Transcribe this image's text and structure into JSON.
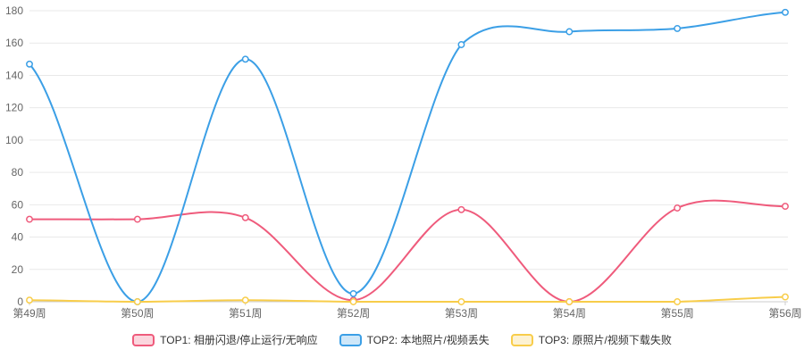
{
  "chart_data": {
    "type": "line",
    "smooth": true,
    "title": "",
    "xlabel": "",
    "ylabel": "",
    "grid": true,
    "legend_position": "bottom",
    "categories": [
      "第49周",
      "第50周",
      "第51周",
      "第52周",
      "第53周",
      "第54周",
      "第55周",
      "第56周"
    ],
    "series": [
      {
        "id": "top1",
        "name": "TOP1: 相册闪退/停止运行/无响应",
        "color": "#ef5b7c",
        "values": [
          51,
          51,
          52,
          1,
          57,
          0,
          58,
          59
        ]
      },
      {
        "id": "top2",
        "name": "TOP2: 本地照片/视频丢失",
        "color": "#3b9fe6",
        "values": [
          147,
          0,
          150,
          5,
          159,
          167,
          169,
          179
        ]
      },
      {
        "id": "top3",
        "name": "TOP3: 原照片/视频下载失败",
        "color": "#f8cd4a",
        "values": [
          1,
          0,
          1,
          0,
          0,
          0,
          0,
          3
        ]
      }
    ],
    "ylim": [
      0,
      180
    ],
    "yticks": [
      0,
      20,
      40,
      60,
      80,
      100,
      120,
      140,
      160,
      180
    ],
    "style": {
      "background": "#ffffff",
      "axis_label_color": "#666666",
      "grid_line_color": "#e9e9e9",
      "axis_line_color": "#cccccc",
      "legend_text_color": "#333333",
      "marker_fill": "#ffffff"
    }
  }
}
